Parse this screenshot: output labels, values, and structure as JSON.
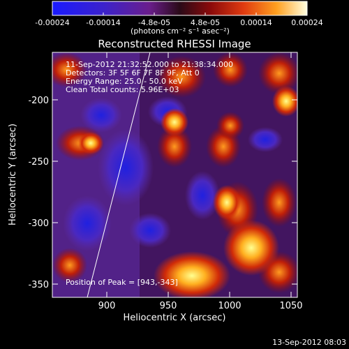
{
  "colorbar": {
    "tick_labels": [
      "-0.00024",
      "-0.00014",
      "-4.8e-05",
      "4.8e-05",
      "0.00014",
      "0.00024"
    ],
    "units_label": "(photons cm⁻² s⁻¹ asec⁻²)"
  },
  "plot": {
    "title": "Reconstructed RHESSI Image",
    "xlabel": "Heliocentric X (arcsec)",
    "ylabel": "Heliocentric Y (arcsec)",
    "x_ticks": [
      "900",
      "950",
      "1000",
      "1050"
    ],
    "y_ticks": [
      "-200",
      "-250",
      "-300",
      "-350"
    ],
    "info_lines": [
      "11-Sep-2012 21:32:52.000 to 21:38:34.000",
      "Detectors: 3F 5F 6F 7F 8F 9F, Att 0",
      "Energy Range: 25.0 - 50.0 keV",
      "Clean    Total counts: 5.96E+03"
    ],
    "peak_label": "Position of Peak = [943,-343]"
  },
  "footer": {
    "timestamp": "13-Sep-2012 08:03"
  }
}
